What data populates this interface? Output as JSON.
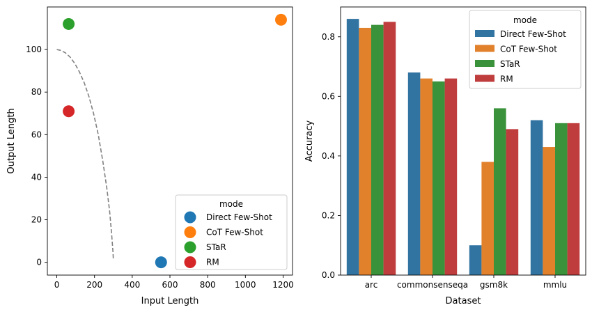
{
  "chart_data": [
    {
      "type": "scatter",
      "xlabel": "Input Length",
      "ylabel": "Output Length",
      "xlim": [
        -50,
        1250
      ],
      "ylim": [
        -6,
        120
      ],
      "xticks": [
        0,
        200,
        400,
        600,
        800,
        1000,
        1200
      ],
      "yticks": [
        0,
        20,
        40,
        60,
        80,
        100
      ],
      "points": [
        {
          "name": "Direct Few-Shot",
          "x": 553,
          "y": 0,
          "color": "#1f77b4"
        },
        {
          "name": "CoT Few-Shot",
          "x": 1189,
          "y": 114,
          "color": "#ff7f0e"
        },
        {
          "name": "STaR",
          "x": 63,
          "y": 112,
          "color": "#2ca02c"
        },
        {
          "name": "RM",
          "x": 63,
          "y": 71,
          "color": "#d62728"
        }
      ],
      "curve": {
        "style": "dashed",
        "color": "#808080",
        "x": [
          0,
          20,
          45,
          70,
          95,
          120,
          145,
          170,
          195,
          220,
          245,
          265,
          280,
          290,
          298,
          300
        ],
        "y": [
          100,
          99.6,
          98.5,
          96.5,
          93.5,
          89.5,
          84.5,
          78,
          70,
          60,
          47,
          35,
          24,
          14,
          5,
          1
        ]
      },
      "legend": {
        "title": "mode",
        "position": "lower-right",
        "entries": [
          "Direct Few-Shot",
          "CoT Few-Shot",
          "STaR",
          "RM"
        ]
      }
    },
    {
      "type": "bar",
      "xlabel": "Dataset",
      "ylabel": "Accuracy",
      "ylim": [
        0,
        0.9
      ],
      "yticks": [
        0.0,
        0.2,
        0.4,
        0.6,
        0.8
      ],
      "categories": [
        "arc",
        "commonsenseqa",
        "gsm8k",
        "mmlu"
      ],
      "series": [
        {
          "name": "Direct Few-Shot",
          "color": "#3274a1",
          "values": [
            0.86,
            0.68,
            0.1,
            0.52
          ]
        },
        {
          "name": "CoT Few-Shot",
          "color": "#e1812c",
          "values": [
            0.83,
            0.66,
            0.38,
            0.43
          ]
        },
        {
          "name": "STaR",
          "color": "#3a923a",
          "values": [
            0.84,
            0.65,
            0.56,
            0.51
          ]
        },
        {
          "name": "RM",
          "color": "#c03d3e",
          "values": [
            0.85,
            0.66,
            0.49,
            0.51
          ]
        }
      ],
      "legend": {
        "title": "mode",
        "position": "upper-right",
        "entries": [
          "Direct Few-Shot",
          "CoT Few-Shot",
          "STaR",
          "RM"
        ]
      }
    }
  ]
}
